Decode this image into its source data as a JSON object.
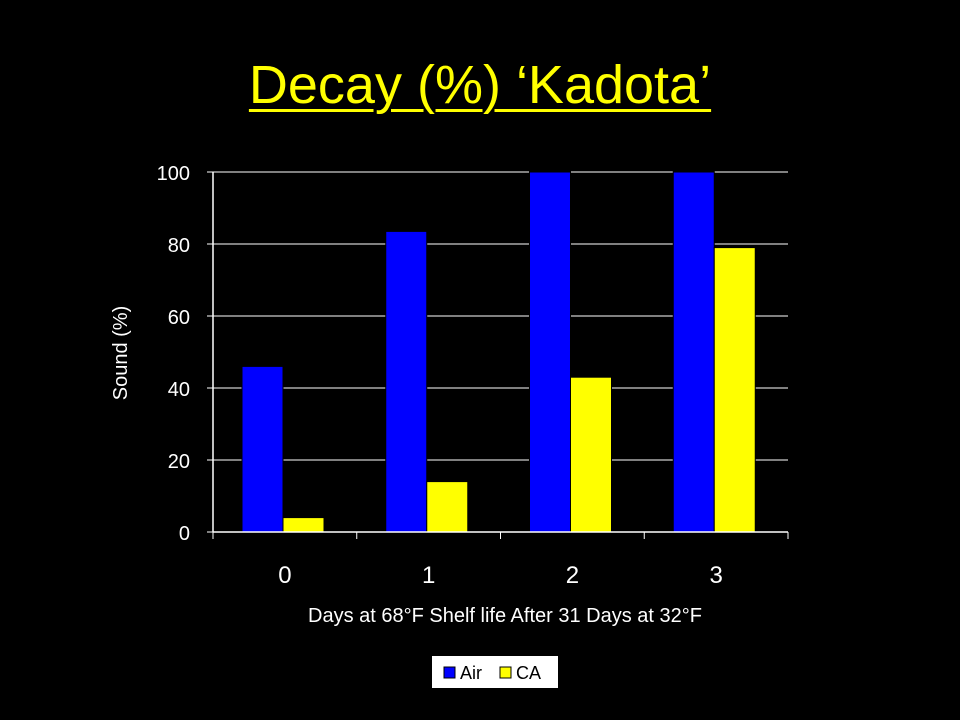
{
  "slide": {
    "title": "Decay (%) ‘Kadota’"
  },
  "colors": {
    "background": "#000000",
    "title": "#ffff00",
    "text": "#ffffff",
    "axis": "#ffffff",
    "air": "#0000ff",
    "ca": "#ffff00",
    "legend_background": "#ffffff",
    "legend_text": "#000000"
  },
  "chart_data": {
    "type": "bar",
    "title": "",
    "xlabel": "Days at 68°F Shelf life After 31 Days at 32°F",
    "ylabel": "Sound (%)",
    "categories": [
      "0",
      "1",
      "2",
      "3"
    ],
    "series": [
      {
        "name": "Air",
        "color": "#0000ff",
        "values": [
          46,
          83.5,
          100,
          100
        ]
      },
      {
        "name": "CA",
        "color": "#ffff00",
        "values": [
          4,
          14,
          43,
          79
        ]
      }
    ],
    "ylim": [
      0,
      100
    ],
    "yticks": [
      0,
      20,
      40,
      60,
      80,
      100
    ],
    "grid": false,
    "legend_position": "bottom"
  }
}
